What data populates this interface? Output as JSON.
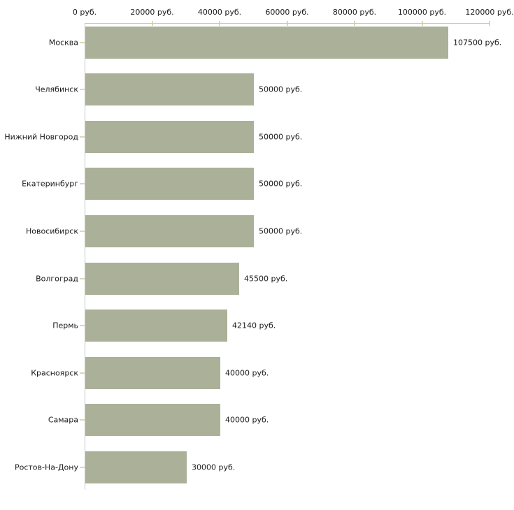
{
  "chart_data": {
    "type": "bar",
    "orientation": "horizontal",
    "title": "",
    "xlabel": "",
    "ylabel": "",
    "unit": "руб.",
    "grid": false,
    "legend": false,
    "axis_position": "top",
    "xlim": [
      0,
      120000
    ],
    "categories": [
      "Москва",
      "Челябинск",
      "Нижний Новгород",
      "Екатеринбург",
      "Новосибирск",
      "Волгоград",
      "Пермь",
      "Красноярск",
      "Самара",
      "Ростов-На-Дону"
    ],
    "values": [
      107500,
      50000,
      50000,
      50000,
      50000,
      45500,
      42140,
      40000,
      40000,
      30000
    ],
    "value_labels": [
      "107500 руб.",
      "50000 руб.",
      "50000 руб.",
      "50000 руб.",
      "50000 руб.",
      "45500 руб.",
      "42140 руб.",
      "40000 руб.",
      "40000 руб.",
      "30000 руб."
    ],
    "x_ticks": [
      0,
      20000,
      40000,
      60000,
      80000,
      100000,
      120000
    ],
    "x_tick_labels": [
      "0 руб.",
      "20000 руб.",
      "40000 руб.",
      "60000 руб.",
      "80000 руб.",
      "100000 руб.",
      "120000 руб."
    ]
  },
  "colors": {
    "bar": "#abb198",
    "axis_line": "#c8c8c8",
    "tick_mark": "#dbd8b4",
    "text": "#1a1a1a",
    "background": "#ffffff"
  }
}
